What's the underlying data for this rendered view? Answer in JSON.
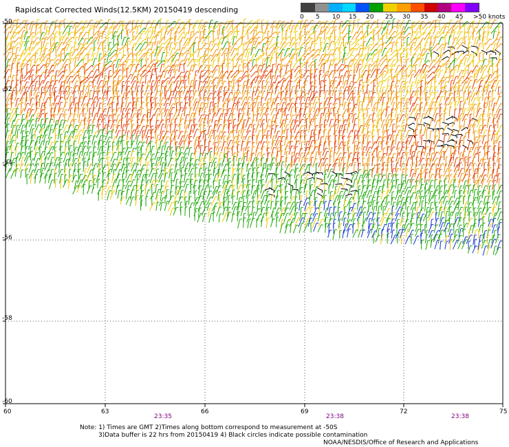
{
  "header": {
    "title": "Rapidscat Corrected Winds(12.5KM) 20150419 descending"
  },
  "legend": {
    "labels": [
      "0",
      "5",
      "10",
      "15",
      "20",
      "25",
      "30",
      "35",
      "40",
      "45",
      ">50 knots"
    ],
    "colors": [
      "#404040",
      "#909090",
      "#00b0ff",
      "#00d8ff",
      "#0050ff",
      "#00a000",
      "#f0d000",
      "#ffa000",
      "#ff5000",
      "#d00000",
      "#b00080",
      "#ff00ff",
      "#8000ff"
    ]
  },
  "axes": {
    "lat_labels": [
      "-50",
      "-52",
      "-54",
      "-56",
      "-58",
      "-60"
    ],
    "lon_labels": [
      "60",
      "63",
      "66",
      "69",
      "72",
      "75"
    ]
  },
  "times": [
    "23:35",
    "23:38",
    "23:38"
  ],
  "notes": {
    "line1": "Note: 1) Times are GMT 2)Times along bottom correspond to measurement at -50S",
    "line2": "3)Data buffer is 22 hrs from 20150419 4) Black circles indicate possible contamination",
    "credit": "NOAA/NESDIS/Office of Research and Applications"
  },
  "palette": {
    "green": "#19a500",
    "yellow": "#f0c800",
    "orange": "#f09000",
    "red": "#e23a00",
    "blue": "#1030d0",
    "black": "#000000"
  }
}
